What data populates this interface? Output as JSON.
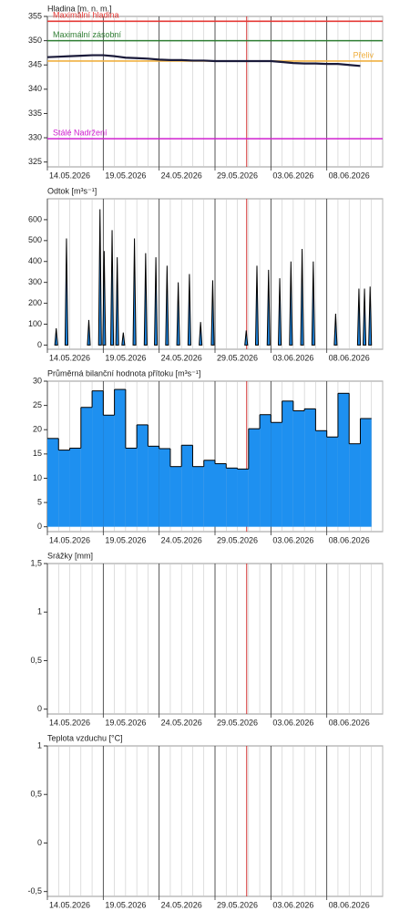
{
  "chart_data": [
    {
      "type": "line",
      "title": "Hladina [m. n. m.]",
      "xlim": [
        "2026-05-14",
        "2026-06-13"
      ],
      "xticks": [
        {
          "value": "2026-05-14",
          "label": "14.05.2026"
        },
        {
          "value": "2026-05-19",
          "label": "19.05.2026"
        },
        {
          "value": "2026-05-24",
          "label": "24.05.2026"
        },
        {
          "value": "2026-05-29",
          "label": "29.05.2026"
        },
        {
          "value": "2026-06-03",
          "label": "03.06.2026"
        },
        {
          "value": "2026-06-08",
          "label": "08.06.2026"
        }
      ],
      "ylim": [
        324,
        355
      ],
      "yticks": [
        325,
        330,
        335,
        340,
        345,
        350,
        355
      ],
      "now": "2026-05-31T20:00",
      "hlines": [
        {
          "name": "Maximální hladina",
          "value": 354,
          "color": "#e53935",
          "label_side": "left"
        },
        {
          "name": "Maximální zásobní",
          "value": 350,
          "color": "#2e7d32",
          "label_side": "left"
        },
        {
          "name": "Přeliv",
          "value": 345.8,
          "color": "#f0b040",
          "label_side": "right"
        },
        {
          "name": "Stálé Nadržení",
          "value": 329.8,
          "color": "#d020d0",
          "label_side": "left"
        }
      ],
      "series": [
        {
          "color": "#1a1a3a",
          "x": [
            "2026-05-14",
            "2026-05-15",
            "2026-05-16",
            "2026-05-17",
            "2026-05-18",
            "2026-05-19",
            "2026-05-20",
            "2026-05-21",
            "2026-05-22",
            "2026-05-23",
            "2026-05-24",
            "2026-05-25",
            "2026-05-26",
            "2026-05-27",
            "2026-05-28",
            "2026-05-29",
            "2026-05-30",
            "2026-05-31",
            "2026-06-01",
            "2026-06-02",
            "2026-06-03",
            "2026-06-04",
            "2026-06-05",
            "2026-06-06",
            "2026-06-07",
            "2026-06-08",
            "2026-06-09",
            "2026-06-10",
            "2026-06-11"
          ],
          "values": [
            346.6,
            346.7,
            346.8,
            346.9,
            347.0,
            347.0,
            346.8,
            346.5,
            346.4,
            346.3,
            346.1,
            346.0,
            346.0,
            345.9,
            345.9,
            345.8,
            345.8,
            345.8,
            345.8,
            345.8,
            345.8,
            345.6,
            345.4,
            345.3,
            345.3,
            345.2,
            345.2,
            345.0,
            344.8
          ]
        }
      ]
    },
    {
      "type": "spike",
      "title": "Odtok [m³s⁻¹]",
      "xlim": [
        "2026-05-14",
        "2026-06-13"
      ],
      "xticks": [
        {
          "value": "2026-05-14",
          "label": "14.05.2026"
        },
        {
          "value": "2026-05-19",
          "label": "19.05.2026"
        },
        {
          "value": "2026-05-24",
          "label": "24.05.2026"
        },
        {
          "value": "2026-05-29",
          "label": "29.05.2026"
        },
        {
          "value": "2026-06-03",
          "label": "03.06.2026"
        },
        {
          "value": "2026-06-08",
          "label": "08.06.2026"
        }
      ],
      "ylim": [
        -20,
        700
      ],
      "yticks": [
        0,
        100,
        200,
        300,
        400,
        500,
        600
      ],
      "now": "2026-05-31T20:00",
      "series": [
        {
          "color": "#1e88e5",
          "x": [
            "2026-05-14T19:00",
            "2026-05-15T17:00",
            "2026-05-17T17:00",
            "2026-05-18T17:00",
            "2026-05-19T02:00",
            "2026-05-19T19:00",
            "2026-05-20T06:00",
            "2026-05-20T19:00",
            "2026-05-21T19:00",
            "2026-05-22T19:00",
            "2026-05-23T17:00",
            "2026-05-24T17:00",
            "2026-05-25T17:00",
            "2026-05-26T17:00",
            "2026-05-27T17:00",
            "2026-05-28T19:00",
            "2026-05-31T19:00",
            "2026-06-01T18:00",
            "2026-06-02T19:00",
            "2026-06-03T19:00",
            "2026-06-04T19:00",
            "2026-06-05T19:00",
            "2026-06-06T19:00",
            "2026-06-08T19:00",
            "2026-06-10T21:00",
            "2026-06-11T09:00",
            "2026-06-11T21:00"
          ],
          "values": [
            80,
            510,
            120,
            650,
            450,
            550,
            420,
            60,
            510,
            440,
            420,
            380,
            300,
            340,
            110,
            310,
            70,
            380,
            360,
            320,
            400,
            460,
            400,
            150,
            270,
            270,
            280
          ]
        }
      ]
    },
    {
      "type": "bar",
      "title": "Průměrná bilanční hodnota přítoku [m³s⁻¹]",
      "xlim": [
        "2026-05-14",
        "2026-06-13"
      ],
      "xticks": [
        {
          "value": "2026-05-14",
          "label": "14.05.2026"
        },
        {
          "value": "2026-05-19",
          "label": "19.05.2026"
        },
        {
          "value": "2026-05-24",
          "label": "24.05.2026"
        },
        {
          "value": "2026-05-29",
          "label": "29.05.2026"
        },
        {
          "value": "2026-06-03",
          "label": "03.06.2026"
        },
        {
          "value": "2026-06-08",
          "label": "08.06.2026"
        }
      ],
      "ylim": [
        -1,
        30
      ],
      "yticks": [
        0,
        5,
        10,
        15,
        20,
        25,
        30
      ],
      "now": "2026-05-31T20:00",
      "series": [
        {
          "color": "#1e90f0",
          "x": [
            "2026-05-14",
            "2026-05-15",
            "2026-05-16",
            "2026-05-17",
            "2026-05-18",
            "2026-05-19",
            "2026-05-20",
            "2026-05-21",
            "2026-05-22",
            "2026-05-23",
            "2026-05-24",
            "2026-05-25",
            "2026-05-26",
            "2026-05-27",
            "2026-05-28",
            "2026-05-29",
            "2026-05-30",
            "2026-05-31",
            "2026-06-01",
            "2026-06-02",
            "2026-06-03",
            "2026-06-04",
            "2026-06-05",
            "2026-06-06",
            "2026-06-07",
            "2026-06-08",
            "2026-06-09",
            "2026-06-10",
            "2026-06-11"
          ],
          "values": [
            18.2,
            15.8,
            16.2,
            24.6,
            28.0,
            23.0,
            28.3,
            16.2,
            21.0,
            16.6,
            16.1,
            12.4,
            16.8,
            12.4,
            13.7,
            13.0,
            12.1,
            11.9,
            20.2,
            23.1,
            21.5,
            25.9,
            23.9,
            24.3,
            19.8,
            18.5,
            27.5,
            17.1,
            22.3
          ]
        }
      ]
    },
    {
      "type": "bar",
      "title": "Srážky [mm]",
      "xlim": [
        "2026-05-14",
        "2026-06-13"
      ],
      "xticks": [
        {
          "value": "2026-05-14",
          "label": "14.05.2026"
        },
        {
          "value": "2026-05-19",
          "label": "19.05.2026"
        },
        {
          "value": "2026-05-24",
          "label": "24.05.2026"
        },
        {
          "value": "2026-05-29",
          "label": "29.05.2026"
        },
        {
          "value": "2026-06-03",
          "label": "03.06.2026"
        },
        {
          "value": "2026-06-08",
          "label": "08.06.2026"
        }
      ],
      "ylim": [
        -0.05,
        1.5
      ],
      "yticks": [
        0,
        {
          "value": 0.5,
          "label": "0,5"
        },
        1,
        {
          "value": 1.5,
          "label": "1,5"
        }
      ],
      "now": "2026-05-31T20:00"
    },
    {
      "type": "line",
      "title": "Teplota vzduchu [°C]",
      "xlim": [
        "2026-05-14",
        "2026-06-13"
      ],
      "xticks": [
        {
          "value": "2026-05-14",
          "label": "14.05.2026"
        },
        {
          "value": "2026-05-19",
          "label": "19.05.2026"
        },
        {
          "value": "2026-05-24",
          "label": "24.05.2026"
        },
        {
          "value": "2026-05-29",
          "label": "29.05.2026"
        },
        {
          "value": "2026-06-03",
          "label": "03.06.2026"
        },
        {
          "value": "2026-06-08",
          "label": "08.06.2026"
        }
      ],
      "ylim": [
        -0.55,
        1
      ],
      "yticks": [
        {
          "value": -0.5,
          "label": "-0,5"
        },
        0,
        {
          "value": 0.5,
          "label": "0,5"
        },
        1
      ],
      "now": "2026-05-31T20:00"
    }
  ]
}
